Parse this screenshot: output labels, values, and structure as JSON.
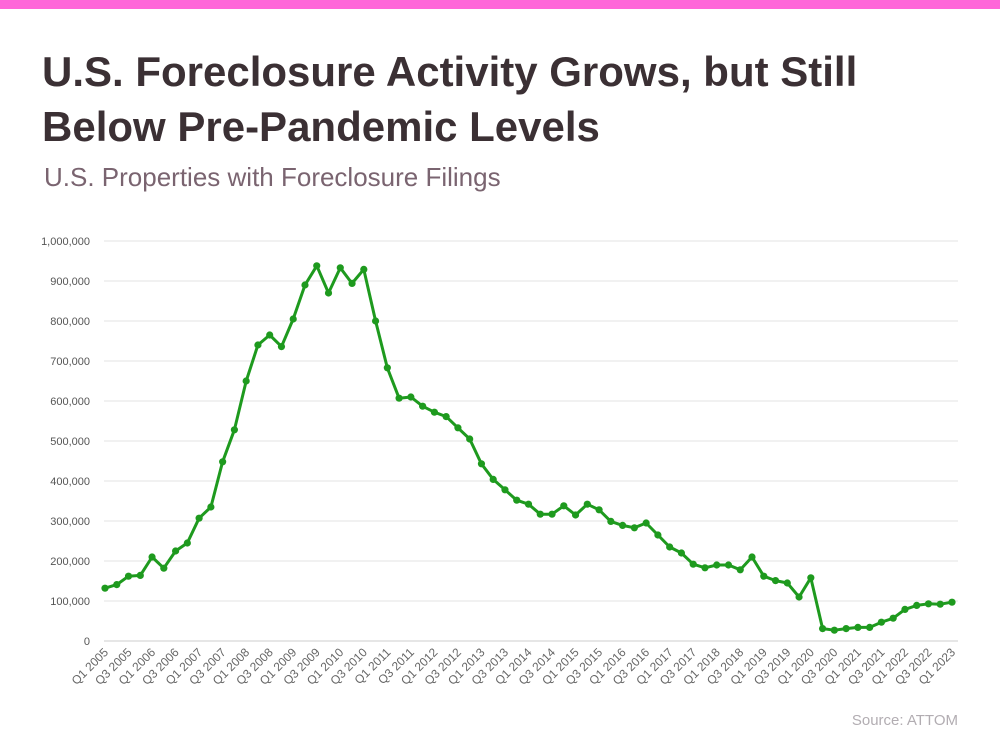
{
  "accent_color": "#ff66d9",
  "title": "U.S. Foreclosure Activity Grows, but Still Below Pre-Pandemic Levels",
  "subtitle": "U.S. Properties with Foreclosure Filings",
  "source": "Source: ATTOM",
  "chart_data": {
    "type": "line",
    "title": "U.S. Foreclosure Activity Grows, but Still Below Pre-Pandemic Levels",
    "subtitle": "U.S. Properties with Foreclosure Filings",
    "xlabel": "",
    "ylabel": "",
    "ylim": [
      0,
      1000000
    ],
    "y_ticks": [
      0,
      100000,
      200000,
      300000,
      400000,
      500000,
      600000,
      700000,
      800000,
      900000,
      1000000
    ],
    "y_tick_labels": [
      "0",
      "100,000",
      "200,000",
      "300,000",
      "400,000",
      "500,000",
      "600,000",
      "700,000",
      "800,000",
      "900,000",
      "1,000,000"
    ],
    "grid": true,
    "legend": "none",
    "line_color": "#1e9a1e",
    "x_tick_labels": [
      "Q1 2005",
      "Q3 2005",
      "Q1 2006",
      "Q3 2006",
      "Q1 2007",
      "Q3 2007",
      "Q1 2008",
      "Q3 2008",
      "Q1 2009",
      "Q3 2009",
      "Q1 2010",
      "Q3 2010",
      "Q1 2011",
      "Q3 2011",
      "Q1 2012",
      "Q3 2012",
      "Q1 2013",
      "Q3 2013",
      "Q1 2014",
      "Q3 2014",
      "Q1 2015",
      "Q3 2015",
      "Q1 2016",
      "Q3 2016",
      "Q1 2017",
      "Q3 2017",
      "Q1 2018",
      "Q3 2018",
      "Q1 2019",
      "Q3 2019",
      "Q1 2020",
      "Q3 2020",
      "Q1 2021",
      "Q3 2021",
      "Q1 2022",
      "Q3 2022",
      "Q1 2023"
    ],
    "x": [
      "Q1 2005",
      "Q2 2005",
      "Q3 2005",
      "Q4 2005",
      "Q1 2006",
      "Q2 2006",
      "Q3 2006",
      "Q4 2006",
      "Q1 2007",
      "Q2 2007",
      "Q3 2007",
      "Q4 2007",
      "Q1 2008",
      "Q2 2008",
      "Q3 2008",
      "Q4 2008",
      "Q1 2009",
      "Q2 2009",
      "Q3 2009",
      "Q4 2009",
      "Q1 2010",
      "Q2 2010",
      "Q3 2010",
      "Q4 2010",
      "Q1 2011",
      "Q2 2011",
      "Q3 2011",
      "Q4 2011",
      "Q1 2012",
      "Q2 2012",
      "Q3 2012",
      "Q4 2012",
      "Q1 2013",
      "Q2 2013",
      "Q3 2013",
      "Q4 2013",
      "Q1 2014",
      "Q2 2014",
      "Q3 2014",
      "Q4 2014",
      "Q1 2015",
      "Q2 2015",
      "Q3 2015",
      "Q4 2015",
      "Q1 2016",
      "Q2 2016",
      "Q3 2016",
      "Q4 2016",
      "Q1 2017",
      "Q2 2017",
      "Q3 2017",
      "Q4 2017",
      "Q1 2018",
      "Q2 2018",
      "Q3 2018",
      "Q4 2018",
      "Q1 2019",
      "Q2 2019",
      "Q3 2019",
      "Q4 2019",
      "Q1 2020",
      "Q2 2020",
      "Q3 2020",
      "Q4 2020",
      "Q1 2021",
      "Q2 2021",
      "Q3 2021",
      "Q4 2021",
      "Q1 2022",
      "Q2 2022",
      "Q3 2022",
      "Q4 2022",
      "Q1 2023"
    ],
    "values": [
      132000,
      141000,
      162000,
      164000,
      210000,
      182000,
      225000,
      245000,
      307000,
      335000,
      448000,
      528000,
      650000,
      740000,
      765000,
      736000,
      805000,
      890000,
      938000,
      870000,
      933000,
      894000,
      929000,
      800000,
      683000,
      607000,
      610000,
      587000,
      572000,
      561000,
      533000,
      505000,
      443000,
      404000,
      378000,
      352000,
      342000,
      317000,
      317000,
      338000,
      315000,
      342000,
      328000,
      299000,
      289000,
      283000,
      295000,
      265000,
      235000,
      220000,
      192000,
      183000,
      190000,
      190000,
      178000,
      210000,
      162000,
      151000,
      145000,
      110000,
      158000,
      31000,
      27000,
      31000,
      34000,
      34000,
      47000,
      57000,
      79000,
      89000,
      93000,
      92000,
      97000
    ]
  }
}
